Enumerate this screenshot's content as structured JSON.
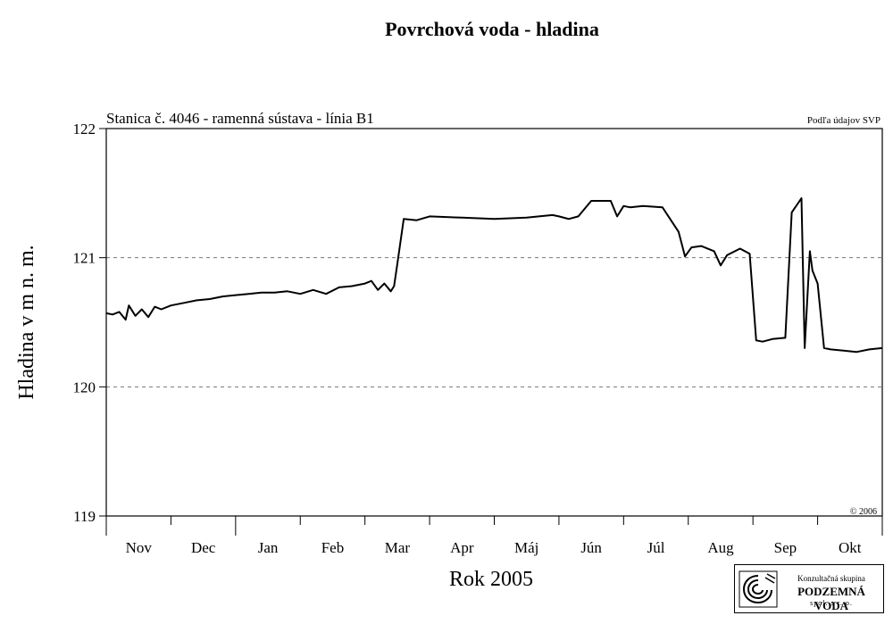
{
  "chart_data": {
    "type": "line",
    "title": "Povrchová voda - hladina",
    "subtitle": "Stanica č. 4046 - ramenná sústava - línia B1",
    "source_note": "Podľa údajov SVP",
    "copyright": "© 2006",
    "xlabel": "Rok 2005",
    "ylabel": "Hladina v m n. m.",
    "ylim": [
      119,
      122
    ],
    "yticks": [
      "119",
      "120",
      "121",
      "122"
    ],
    "dashed_gridlines": [
      120,
      121
    ],
    "months": [
      "Nov",
      "Dec",
      "Jan",
      "Feb",
      "Mar",
      "Apr",
      "Máj",
      "Jún",
      "Júl",
      "Aug",
      "Sep",
      "Okt"
    ],
    "series": [
      {
        "x": [
          0.0,
          0.1,
          0.2,
          0.3,
          0.35,
          0.45,
          0.55,
          0.65,
          0.75,
          0.85,
          1.0,
          1.2,
          1.4,
          1.6,
          1.8,
          2.0,
          2.2,
          2.4,
          2.6,
          2.8,
          3.0,
          3.2,
          3.4,
          3.6,
          3.8,
          4.0,
          4.1,
          4.2,
          4.3,
          4.4,
          4.45,
          4.5,
          4.6,
          4.8,
          5.0,
          5.5,
          6.0,
          6.5,
          6.9,
          7.0,
          7.15,
          7.3,
          7.5,
          7.8,
          7.9,
          8.0,
          8.1,
          8.3,
          8.6,
          8.85,
          8.95,
          9.05,
          9.2,
          9.4,
          9.5,
          9.6,
          9.8,
          9.95,
          10.05,
          10.15,
          10.3,
          10.5,
          10.6,
          10.75,
          10.8,
          10.88,
          10.92,
          11.0,
          11.1,
          11.2,
          11.4,
          11.6,
          11.8,
          12.0
        ],
        "y": [
          120.57,
          120.56,
          120.58,
          120.52,
          120.63,
          120.55,
          120.6,
          120.54,
          120.62,
          120.6,
          120.63,
          120.65,
          120.67,
          120.68,
          120.7,
          120.71,
          120.72,
          120.73,
          120.73,
          120.74,
          120.72,
          120.75,
          120.72,
          120.77,
          120.78,
          120.8,
          120.82,
          120.75,
          120.8,
          120.74,
          120.78,
          120.95,
          121.3,
          121.29,
          121.32,
          121.31,
          121.3,
          121.31,
          121.33,
          121.32,
          121.3,
          121.32,
          121.44,
          121.44,
          121.32,
          121.4,
          121.39,
          121.4,
          121.39,
          121.2,
          121.01,
          121.08,
          121.09,
          121.05,
          120.94,
          121.02,
          121.07,
          121.03,
          120.36,
          120.35,
          120.37,
          120.38,
          121.35,
          121.46,
          120.3,
          121.05,
          120.9,
          120.8,
          120.3,
          120.29,
          120.28,
          120.27,
          120.29,
          120.3
        ]
      }
    ]
  },
  "logo": {
    "line1": "Konzultačná skupina",
    "line2": "PODZEMNÁ VODA",
    "line3": "spol. s r. o."
  }
}
